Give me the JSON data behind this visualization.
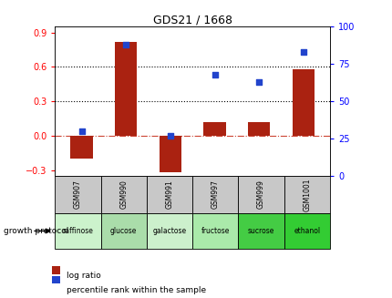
{
  "title": "GDS21 / 1668",
  "samples": [
    "GSM907",
    "GSM990",
    "GSM991",
    "GSM997",
    "GSM999",
    "GSM1001"
  ],
  "conditions": [
    "raffinose",
    "glucose",
    "galactose",
    "fructose",
    "sucrose",
    "ethanol"
  ],
  "log_ratio": [
    -0.2,
    0.82,
    -0.32,
    0.12,
    0.12,
    0.58
  ],
  "percentile_rank": [
    30,
    88,
    27,
    68,
    63,
    83
  ],
  "bar_color": "#aa2211",
  "dot_color": "#2244cc",
  "ylim_left": [
    -0.35,
    0.95
  ],
  "ylim_right": [
    0,
    100
  ],
  "yticks_left": [
    -0.3,
    0.0,
    0.3,
    0.6,
    0.9
  ],
  "yticks_right": [
    0,
    25,
    50,
    75,
    100
  ],
  "hline_color": "#cc4433",
  "hline_style": "-.",
  "dotted_line_color": "#000000",
  "dotted_lines": [
    0.3,
    0.6
  ],
  "condition_colors": [
    "#ccf0cc",
    "#aae0aa",
    "#ccf0cc",
    "#aae8aa",
    "#55dd55",
    "#44dd44"
  ],
  "gsm_bg_color": "#c8c8c8",
  "legend_log_ratio_label": "log ratio",
  "legend_percentile_label": "percentile rank within the sample",
  "growth_protocol_label": "growth protocol",
  "bar_width": 0.5
}
